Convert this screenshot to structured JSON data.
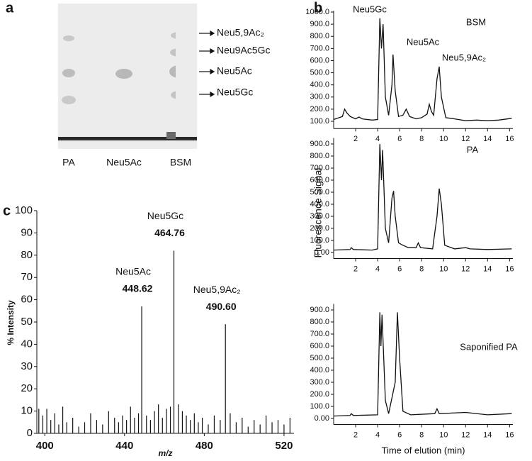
{
  "figure": {
    "panel_labels": [
      "a",
      "b",
      "c"
    ]
  },
  "tlc": {
    "lanes": [
      "PA",
      "Neu5Ac",
      "BSM"
    ],
    "spots": [
      "Neu5,9Ac₂",
      "Neu9Ac5Gc",
      "Neu5Ac",
      "Neu5Gc"
    ]
  },
  "chart_data": [
    {
      "type": "line",
      "title": "BSM",
      "annotations": [
        "Neu5Gc",
        "Neu5Ac",
        "Neu5,9Ac₂"
      ],
      "xlim": [
        0,
        16.3
      ],
      "xticks": [
        2,
        4,
        6,
        8,
        10,
        12,
        14,
        16
      ],
      "ylim": [
        40,
        1010
      ],
      "yticks": [
        {
          "value": 1000,
          "label": "1000.0"
        },
        {
          "value": 900,
          "label": "900.0"
        },
        {
          "value": 800,
          "label": "800.0"
        },
        {
          "value": 700,
          "label": "700.0"
        },
        {
          "value": 600,
          "label": "600.0"
        },
        {
          "value": 500,
          "label": "500.0"
        },
        {
          "value": 400,
          "label": "400.0"
        },
        {
          "value": 300,
          "label": "300.0"
        },
        {
          "value": 200,
          "label": "200.0"
        },
        {
          "value": 100,
          "label": "100.0"
        }
      ],
      "series": [
        {
          "color": "#111111",
          "x": [
            0,
            0.8,
            1.0,
            1.2,
            1.5,
            2,
            2.3,
            2.6,
            3.5,
            4.0,
            4.2,
            4.35,
            4.5,
            4.7,
            5.0,
            5.3,
            5.4,
            5.6,
            5.9,
            6.3,
            6.6,
            6.9,
            7.5,
            8.0,
            8.5,
            8.7,
            8.9,
            9.1,
            9.4,
            9.6,
            9.8,
            10.2,
            11,
            12,
            13,
            14,
            15,
            16.2
          ],
          "values": [
            115,
            140,
            200,
            170,
            140,
            120,
            135,
            120,
            110,
            115,
            950,
            700,
            900,
            300,
            150,
            400,
            650,
            350,
            140,
            150,
            200,
            140,
            120,
            130,
            160,
            240,
            180,
            150,
            450,
            550,
            300,
            130,
            120,
            105,
            110,
            105,
            110,
            125
          ]
        }
      ]
    },
    {
      "type": "line",
      "title": "PA",
      "ylabel": "Fluorescence Signal",
      "xlim": [
        0,
        16.3
      ],
      "xticks": [
        2,
        4,
        6,
        8,
        10,
        12,
        14,
        16
      ],
      "ylim": [
        -50,
        950
      ],
      "yticks": [
        {
          "value": 900,
          "label": "900.0"
        },
        {
          "value": 800,
          "label": "800.0"
        },
        {
          "value": 700,
          "label": "700.0"
        },
        {
          "value": 600,
          "label": "600.0"
        },
        {
          "value": 500,
          "label": "500.0"
        },
        {
          "value": 400,
          "label": "400.0"
        },
        {
          "value": 300,
          "label": "300.0"
        },
        {
          "value": 200,
          "label": "200.0"
        },
        {
          "value": 100,
          "label": "100.0"
        },
        {
          "value": 0,
          "label": "0.00"
        }
      ],
      "series": [
        {
          "color": "#111111",
          "x": [
            0,
            1.5,
            1.6,
            1.8,
            3.5,
            4.0,
            4.2,
            4.35,
            4.45,
            4.7,
            5.0,
            5.3,
            5.45,
            5.6,
            5.9,
            6.3,
            6.8,
            7.5,
            7.7,
            7.9,
            9.0,
            9.4,
            9.6,
            9.8,
            10.1,
            11,
            12,
            12.4,
            14,
            16.2
          ],
          "values": [
            20,
            25,
            40,
            25,
            20,
            30,
            900,
            600,
            850,
            200,
            80,
            450,
            510,
            300,
            80,
            60,
            40,
            40,
            80,
            40,
            30,
            300,
            530,
            400,
            60,
            30,
            40,
            30,
            25,
            30
          ]
        }
      ]
    },
    {
      "type": "line",
      "title": "Saponified PA",
      "xlabel": "Time of elution (min)",
      "xlim": [
        0,
        16.3
      ],
      "xticks": [
        2,
        4,
        6,
        8,
        10,
        12,
        14,
        16
      ],
      "ylim": [
        -50,
        950
      ],
      "yticks": [
        {
          "value": 900,
          "label": "900.0"
        },
        {
          "value": 800,
          "label": "800.0"
        },
        {
          "value": 700,
          "label": "700.0"
        },
        {
          "value": 600,
          "label": "600.0"
        },
        {
          "value": 500,
          "label": "500.0"
        },
        {
          "value": 400,
          "label": "400.0"
        },
        {
          "value": 300,
          "label": "300.0"
        },
        {
          "value": 200,
          "label": "200.0"
        },
        {
          "value": 100,
          "label": "100.0"
        },
        {
          "value": 0,
          "label": "0.00"
        }
      ],
      "series": [
        {
          "color": "#111111",
          "x": [
            0,
            1.5,
            1.6,
            1.8,
            4.0,
            4.2,
            4.3,
            4.4,
            4.7,
            5.0,
            5.6,
            5.8,
            6.0,
            6.3,
            7,
            9.2,
            9.4,
            9.6,
            12,
            14,
            16.2
          ],
          "values": [
            20,
            25,
            40,
            25,
            30,
            880,
            600,
            860,
            150,
            40,
            300,
            880,
            500,
            60,
            30,
            40,
            80,
            40,
            50,
            30,
            40
          ]
        }
      ]
    },
    {
      "type": "stem",
      "xlabel": "m/z",
      "ylabel": "% Intensity",
      "xlim": [
        396,
        525
      ],
      "xticks": [
        400,
        440,
        480,
        520
      ],
      "ylim": [
        0,
        100
      ],
      "yticks": [
        0,
        10,
        20,
        30,
        40,
        50,
        60,
        70,
        80,
        90,
        100
      ],
      "series": [
        {
          "color": "#111111",
          "x": [
            397,
            399,
            401,
            403,
            405,
            407,
            409,
            411,
            414,
            417,
            420,
            423,
            426,
            429,
            432,
            435,
            437,
            439,
            441,
            443,
            445,
            447,
            451,
            453,
            455,
            457,
            459,
            461,
            463,
            467,
            469,
            471,
            473,
            475,
            477,
            479,
            482,
            485,
            488,
            493,
            496,
            499,
            502,
            505,
            508,
            511,
            514,
            517,
            520,
            523
          ],
          "values": [
            11,
            8,
            11,
            6,
            9,
            4,
            12,
            5,
            7,
            3,
            5,
            9,
            6,
            4,
            10,
            7,
            5,
            8,
            6,
            12,
            7,
            9,
            8,
            6,
            10,
            13,
            7,
            11,
            12,
            13,
            10,
            8,
            6,
            9,
            5,
            7,
            4,
            8,
            6,
            9,
            5,
            7,
            3,
            6,
            4,
            8,
            5,
            6,
            4,
            7
          ]
        },
        {
          "color": "#111111",
          "x": [
            448.62,
            464.76,
            490.6
          ],
          "x_labels": [
            "448.62",
            "464.76",
            "490.60"
          ],
          "values": [
            57,
            82,
            49
          ],
          "labels": [
            "Neu5Ac",
            "Neu5Gc",
            "Neu5,9Ac₂"
          ]
        }
      ]
    }
  ]
}
